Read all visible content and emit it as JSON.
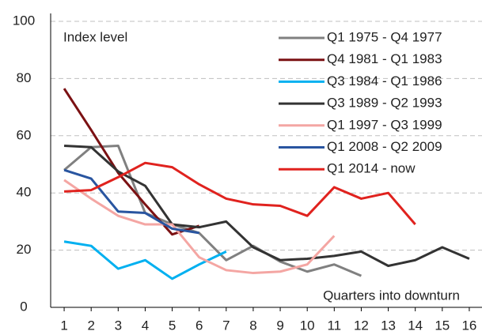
{
  "chart_data": {
    "type": "line",
    "annotations": [
      "Index level",
      "Quarters into downturn"
    ],
    "x": [
      1,
      2,
      3,
      4,
      5,
      6,
      7,
      8,
      9,
      10,
      11,
      12,
      13,
      14,
      15,
      16
    ],
    "xlim": [
      0.5,
      16.5
    ],
    "xticks": [
      1,
      2,
      3,
      4,
      5,
      6,
      7,
      8,
      9,
      10,
      11,
      12,
      13,
      14,
      15,
      16
    ],
    "ylim": [
      0,
      100
    ],
    "yticks": [
      0,
      20,
      40,
      60,
      80,
      100
    ],
    "grid": true,
    "legend": "upper right",
    "series": [
      {
        "name": "Q1 1975 - Q4 1977",
        "color": "#808080",
        "values": [
          48,
          56,
          56.5,
          33,
          29,
          26,
          16.5,
          21.5,
          16,
          12.5,
          15,
          11,
          null,
          null,
          null,
          null
        ]
      },
      {
        "name": "Q4 1981 - Q1 1983",
        "color": "#7b1113",
        "values": [
          76.5,
          62,
          47,
          36,
          25.5,
          28.5,
          null,
          null,
          null,
          null,
          null,
          null,
          null,
          null,
          null,
          null
        ]
      },
      {
        "name": "Q3 1984 - Q1 1986",
        "color": "#00b0f0",
        "values": [
          23,
          21.5,
          13.5,
          16.5,
          10,
          15,
          19.5,
          null,
          null,
          null,
          null,
          null,
          null,
          null,
          null,
          null
        ]
      },
      {
        "name": "Q3 1989 - Q2 1993",
        "color": "#333333",
        "values": [
          56.5,
          56,
          47.5,
          42.5,
          29,
          28,
          30,
          21,
          16.5,
          17,
          18,
          19.5,
          14.5,
          16.5,
          21,
          17
        ]
      },
      {
        "name": "Q1 1997 - Q3 1999",
        "color": "#f4a6a3",
        "values": [
          44.5,
          38,
          32,
          29,
          29,
          17.5,
          13,
          12,
          12.5,
          15,
          25,
          null,
          null,
          null,
          null,
          null
        ]
      },
      {
        "name": "Q1 2008 - Q2 2009",
        "color": "#2955a0",
        "values": [
          48,
          45,
          33.5,
          33,
          27.5,
          26,
          null,
          null,
          null,
          null,
          null,
          null,
          null,
          null,
          null,
          null
        ]
      },
      {
        "name": "Q1 2014 - now",
        "color": "#e0221e",
        "values": [
          40.5,
          41,
          45.5,
          50.5,
          49,
          43,
          38,
          36,
          35.5,
          32,
          42,
          38,
          40,
          29,
          null,
          null
        ]
      }
    ]
  }
}
